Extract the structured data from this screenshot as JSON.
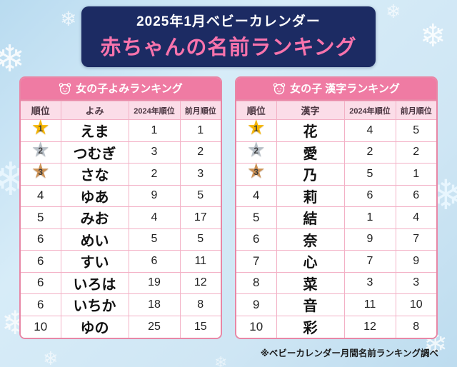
{
  "banner": {
    "line1": "2025年1月ベビーカレンダー",
    "line2": "赤ちゃんの名前ランキング"
  },
  "chart_data": [
    {
      "type": "table",
      "title": "女の子よみランキング",
      "columns": [
        "順位",
        "よみ",
        "2024年順位",
        "前月順位"
      ],
      "rows": [
        {
          "rank": "1",
          "medal": "gold",
          "name": "えま",
          "rank2024": "1",
          "prev_month": "1"
        },
        {
          "rank": "2",
          "medal": "silver",
          "name": "つむぎ",
          "rank2024": "3",
          "prev_month": "2"
        },
        {
          "rank": "3",
          "medal": "bronze",
          "name": "さな",
          "rank2024": "2",
          "prev_month": "3"
        },
        {
          "rank": "4",
          "name": "ゆあ",
          "rank2024": "9",
          "prev_month": "5"
        },
        {
          "rank": "5",
          "name": "みお",
          "rank2024": "4",
          "prev_month": "17"
        },
        {
          "rank": "6",
          "name": "めい",
          "rank2024": "5",
          "prev_month": "5"
        },
        {
          "rank": "6",
          "name": "すい",
          "rank2024": "6",
          "prev_month": "11"
        },
        {
          "rank": "6",
          "name": "いろは",
          "rank2024": "19",
          "prev_month": "12"
        },
        {
          "rank": "6",
          "name": "いちか",
          "rank2024": "18",
          "prev_month": "8"
        },
        {
          "rank": "10",
          "name": "ゆの",
          "rank2024": "25",
          "prev_month": "15"
        }
      ]
    },
    {
      "type": "table",
      "title": "女の子 漢字ランキング",
      "columns": [
        "順位",
        "漢字",
        "2024年順位",
        "前月順位"
      ],
      "rows": [
        {
          "rank": "1",
          "medal": "gold",
          "name": "花",
          "rank2024": "4",
          "prev_month": "5"
        },
        {
          "rank": "2",
          "medal": "silver",
          "name": "愛",
          "rank2024": "2",
          "prev_month": "2"
        },
        {
          "rank": "3",
          "medal": "bronze",
          "name": "乃",
          "rank2024": "5",
          "prev_month": "1"
        },
        {
          "rank": "4",
          "name": "莉",
          "rank2024": "6",
          "prev_month": "6"
        },
        {
          "rank": "5",
          "name": "結",
          "rank2024": "1",
          "prev_month": "4"
        },
        {
          "rank": "6",
          "name": "奈",
          "rank2024": "9",
          "prev_month": "7"
        },
        {
          "rank": "7",
          "name": "心",
          "rank2024": "7",
          "prev_month": "9"
        },
        {
          "rank": "8",
          "name": "菜",
          "rank2024": "3",
          "prev_month": "3"
        },
        {
          "rank": "9",
          "name": "音",
          "rank2024": "11",
          "prev_month": "10"
        },
        {
          "rank": "10",
          "name": "彩",
          "rank2024": "12",
          "prev_month": "8"
        }
      ]
    }
  ],
  "footnote": "※ベビーカレンダー月間名前ランキング調べ",
  "medal_star_glyph": "★",
  "colors": {
    "banner_bg": "#1c2b63",
    "banner_title_pink": "#f873ac",
    "table_title_bg": "#ef7ba3",
    "table_border": "#e887a6",
    "header_row_bg": "#fbdde8",
    "gold": "#f5b501",
    "silver": "#b7bfc7",
    "bronze": "#cd9254",
    "background_blue": "#cfe6f4"
  }
}
